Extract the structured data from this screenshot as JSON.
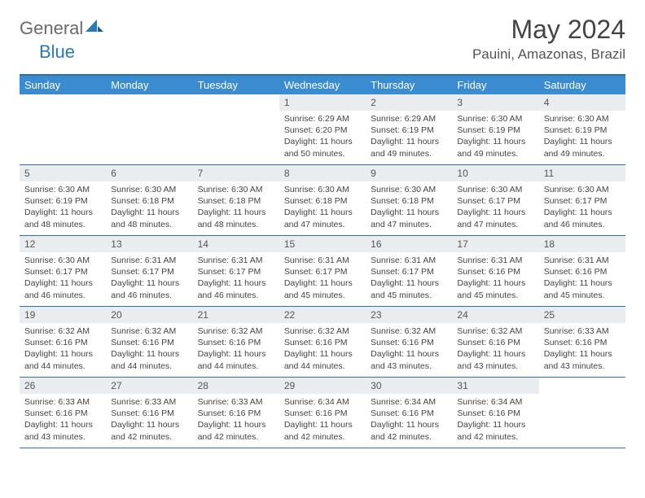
{
  "logo": {
    "part1": "General",
    "part2": "Blue"
  },
  "title": "May 2024",
  "location": "Pauini, Amazonas, Brazil",
  "colors": {
    "header_bar": "#3a8bd0",
    "rule": "#2f6fa8",
    "daynum_bg": "#e9edef",
    "logo_gray": "#6a6a6a",
    "logo_blue": "#2a7ab8"
  },
  "day_names": [
    "Sunday",
    "Monday",
    "Tuesday",
    "Wednesday",
    "Thursday",
    "Friday",
    "Saturday"
  ],
  "weeks": [
    [
      {
        "n": "",
        "empty": true
      },
      {
        "n": "",
        "empty": true
      },
      {
        "n": "",
        "empty": true
      },
      {
        "n": "1",
        "sr": "6:29 AM",
        "ss": "6:20 PM",
        "dl": "11 hours and 50 minutes."
      },
      {
        "n": "2",
        "sr": "6:29 AM",
        "ss": "6:19 PM",
        "dl": "11 hours and 49 minutes."
      },
      {
        "n": "3",
        "sr": "6:30 AM",
        "ss": "6:19 PM",
        "dl": "11 hours and 49 minutes."
      },
      {
        "n": "4",
        "sr": "6:30 AM",
        "ss": "6:19 PM",
        "dl": "11 hours and 49 minutes."
      }
    ],
    [
      {
        "n": "5",
        "sr": "6:30 AM",
        "ss": "6:19 PM",
        "dl": "11 hours and 48 minutes."
      },
      {
        "n": "6",
        "sr": "6:30 AM",
        "ss": "6:18 PM",
        "dl": "11 hours and 48 minutes."
      },
      {
        "n": "7",
        "sr": "6:30 AM",
        "ss": "6:18 PM",
        "dl": "11 hours and 48 minutes."
      },
      {
        "n": "8",
        "sr": "6:30 AM",
        "ss": "6:18 PM",
        "dl": "11 hours and 47 minutes."
      },
      {
        "n": "9",
        "sr": "6:30 AM",
        "ss": "6:18 PM",
        "dl": "11 hours and 47 minutes."
      },
      {
        "n": "10",
        "sr": "6:30 AM",
        "ss": "6:17 PM",
        "dl": "11 hours and 47 minutes."
      },
      {
        "n": "11",
        "sr": "6:30 AM",
        "ss": "6:17 PM",
        "dl": "11 hours and 46 minutes."
      }
    ],
    [
      {
        "n": "12",
        "sr": "6:30 AM",
        "ss": "6:17 PM",
        "dl": "11 hours and 46 minutes."
      },
      {
        "n": "13",
        "sr": "6:31 AM",
        "ss": "6:17 PM",
        "dl": "11 hours and 46 minutes."
      },
      {
        "n": "14",
        "sr": "6:31 AM",
        "ss": "6:17 PM",
        "dl": "11 hours and 46 minutes."
      },
      {
        "n": "15",
        "sr": "6:31 AM",
        "ss": "6:17 PM",
        "dl": "11 hours and 45 minutes."
      },
      {
        "n": "16",
        "sr": "6:31 AM",
        "ss": "6:17 PM",
        "dl": "11 hours and 45 minutes."
      },
      {
        "n": "17",
        "sr": "6:31 AM",
        "ss": "6:16 PM",
        "dl": "11 hours and 45 minutes."
      },
      {
        "n": "18",
        "sr": "6:31 AM",
        "ss": "6:16 PM",
        "dl": "11 hours and 45 minutes."
      }
    ],
    [
      {
        "n": "19",
        "sr": "6:32 AM",
        "ss": "6:16 PM",
        "dl": "11 hours and 44 minutes."
      },
      {
        "n": "20",
        "sr": "6:32 AM",
        "ss": "6:16 PM",
        "dl": "11 hours and 44 minutes."
      },
      {
        "n": "21",
        "sr": "6:32 AM",
        "ss": "6:16 PM",
        "dl": "11 hours and 44 minutes."
      },
      {
        "n": "22",
        "sr": "6:32 AM",
        "ss": "6:16 PM",
        "dl": "11 hours and 44 minutes."
      },
      {
        "n": "23",
        "sr": "6:32 AM",
        "ss": "6:16 PM",
        "dl": "11 hours and 43 minutes."
      },
      {
        "n": "24",
        "sr": "6:32 AM",
        "ss": "6:16 PM",
        "dl": "11 hours and 43 minutes."
      },
      {
        "n": "25",
        "sr": "6:33 AM",
        "ss": "6:16 PM",
        "dl": "11 hours and 43 minutes."
      }
    ],
    [
      {
        "n": "26",
        "sr": "6:33 AM",
        "ss": "6:16 PM",
        "dl": "11 hours and 43 minutes."
      },
      {
        "n": "27",
        "sr": "6:33 AM",
        "ss": "6:16 PM",
        "dl": "11 hours and 42 minutes."
      },
      {
        "n": "28",
        "sr": "6:33 AM",
        "ss": "6:16 PM",
        "dl": "11 hours and 42 minutes."
      },
      {
        "n": "29",
        "sr": "6:34 AM",
        "ss": "6:16 PM",
        "dl": "11 hours and 42 minutes."
      },
      {
        "n": "30",
        "sr": "6:34 AM",
        "ss": "6:16 PM",
        "dl": "11 hours and 42 minutes."
      },
      {
        "n": "31",
        "sr": "6:34 AM",
        "ss": "6:16 PM",
        "dl": "11 hours and 42 minutes."
      },
      {
        "n": "",
        "empty": true
      }
    ]
  ],
  "labels": {
    "sunrise": "Sunrise:",
    "sunset": "Sunset:",
    "daylight": "Daylight:"
  }
}
